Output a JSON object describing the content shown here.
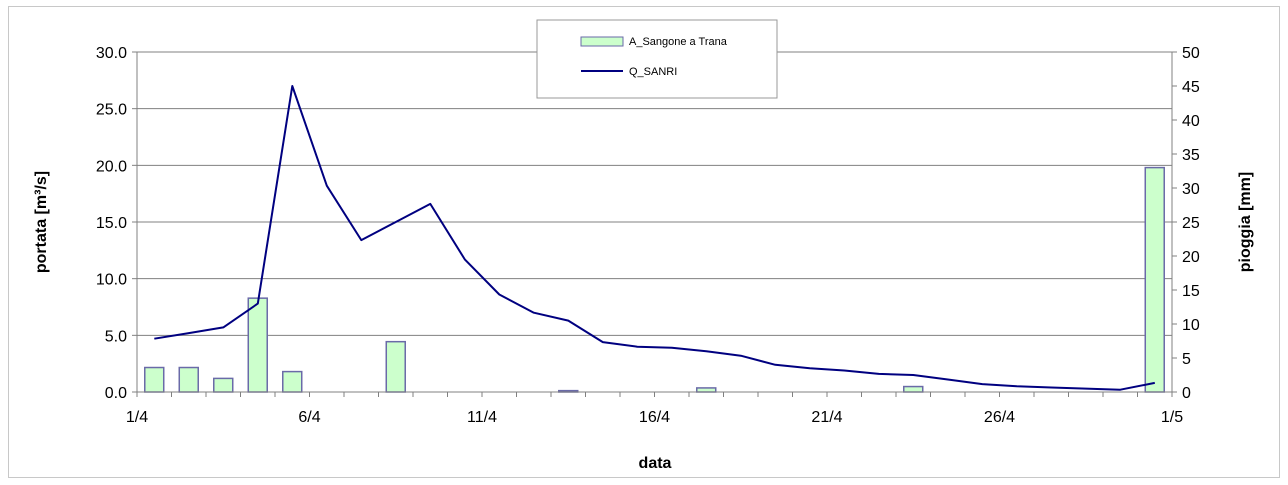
{
  "chart_data": {
    "type": "bar+line",
    "x_axis": {
      "title": "data",
      "tick_labels": [
        "1/4",
        "6/4",
        "11/4",
        "16/4",
        "21/4",
        "26/4",
        "1/5"
      ]
    },
    "y_left": {
      "title": "portata [m³/s]",
      "range": [
        0,
        30
      ],
      "tick_labels": [
        "0.0",
        "5.0",
        "10.0",
        "15.0",
        "20.0",
        "25.0",
        "30.0"
      ]
    },
    "y_right": {
      "title": "pioggia [mm]",
      "range": [
        0,
        50
      ],
      "tick_labels": [
        "0",
        "5",
        "10",
        "15",
        "20",
        "25",
        "30",
        "35",
        "40",
        "45",
        "50"
      ]
    },
    "grid": "horizontal",
    "legend_position": "top-center",
    "series": [
      {
        "name": "A_Sangone a Trana",
        "kind": "bar",
        "axis": "right",
        "color": "#ccffcc",
        "border": "#6a6aa8",
        "x": [
          "1/4",
          "2/4",
          "3/4",
          "4/4",
          "5/4",
          "6/4",
          "7/4",
          "8/4",
          "9/4",
          "10/4",
          "11/4",
          "12/4",
          "13/4",
          "14/4",
          "15/4",
          "16/4",
          "17/4",
          "18/4",
          "19/4",
          "20/4",
          "21/4",
          "22/4",
          "23/4",
          "24/4",
          "25/4",
          "26/4",
          "27/4",
          "28/4",
          "29/4",
          "30/4"
        ],
        "values": [
          3.6,
          3.6,
          2.0,
          13.8,
          3.0,
          0,
          0,
          7.4,
          0,
          0,
          0,
          0,
          0.2,
          0,
          0,
          0,
          0.6,
          0,
          0,
          0,
          0,
          0,
          0.8,
          0,
          0,
          0,
          0,
          0,
          0,
          33.0
        ]
      },
      {
        "name": "Q_SANRI",
        "kind": "line",
        "axis": "left",
        "color": "#000080",
        "x": [
          "1/4",
          "2/4",
          "3/4",
          "4/4",
          "5/4",
          "6/4",
          "7/4",
          "8/4",
          "9/4",
          "10/4",
          "11/4",
          "12/4",
          "13/4",
          "14/4",
          "15/4",
          "16/4",
          "17/4",
          "18/4",
          "19/4",
          "20/4",
          "21/4",
          "22/4",
          "23/4",
          "24/4",
          "25/4",
          "26/4",
          "27/4",
          "28/4",
          "29/4",
          "30/4"
        ],
        "values": [
          4.7,
          5.2,
          5.7,
          7.8,
          27.0,
          18.2,
          13.4,
          15.0,
          16.6,
          11.7,
          8.6,
          7.0,
          6.3,
          4.4,
          4.0,
          3.9,
          3.6,
          3.2,
          2.4,
          2.1,
          1.9,
          1.6,
          1.5,
          1.1,
          0.7,
          0.5,
          0.4,
          0.3,
          0.2,
          0.8
        ]
      }
    ]
  }
}
